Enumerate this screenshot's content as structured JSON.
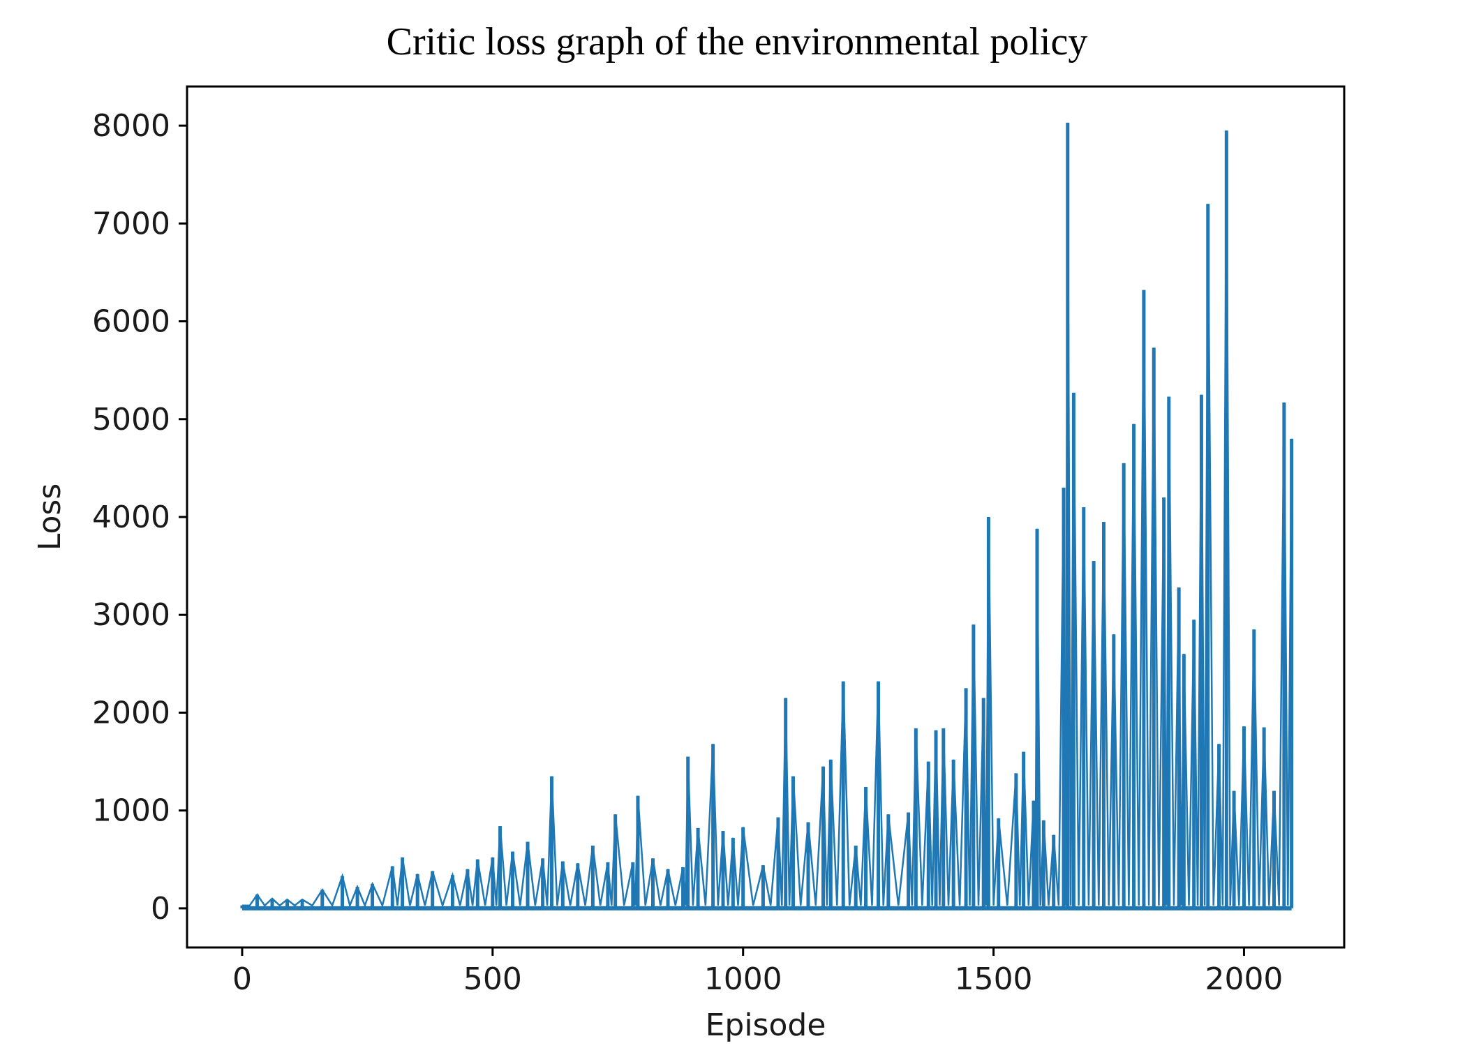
{
  "chart_data": {
    "type": "line",
    "title": "Critic loss graph of the environmental policy",
    "xlabel": "Episode",
    "ylabel": "Loss",
    "xlim": [
      -110,
      2200
    ],
    "ylim": [
      -400,
      8400
    ],
    "xticks": [
      0,
      500,
      1000,
      1500,
      2000
    ],
    "yticks": [
      0,
      1000,
      2000,
      3000,
      4000,
      5000,
      6000,
      7000,
      8000
    ],
    "grid": false,
    "legend": "none",
    "series": [
      {
        "color": "#1f77b4",
        "x": [
          0,
          30,
          60,
          90,
          120,
          160,
          200,
          230,
          260,
          300,
          320,
          350,
          380,
          420,
          450,
          470,
          500,
          515,
          540,
          570,
          600,
          618,
          640,
          670,
          700,
          730,
          745,
          780,
          790,
          820,
          850,
          880,
          890,
          910,
          940,
          960,
          980,
          1000,
          1040,
          1070,
          1085,
          1100,
          1130,
          1160,
          1175,
          1200,
          1225,
          1245,
          1270,
          1290,
          1330,
          1345,
          1370,
          1385,
          1400,
          1420,
          1445,
          1460,
          1480,
          1490,
          1510,
          1545,
          1560,
          1580,
          1587,
          1600,
          1620,
          1640,
          1648,
          1660,
          1680,
          1700,
          1720,
          1740,
          1760,
          1780,
          1800,
          1820,
          1840,
          1850,
          1870,
          1880,
          1900,
          1915,
          1928,
          1950,
          1965,
          1980,
          2000,
          2020,
          2040,
          2060,
          2080,
          2095
        ],
        "y": [
          30,
          140,
          100,
          90,
          90,
          190,
          330,
          220,
          250,
          430,
          520,
          350,
          380,
          340,
          400,
          500,
          520,
          840,
          580,
          680,
          510,
          1350,
          480,
          460,
          640,
          470,
          960,
          470,
          1150,
          510,
          400,
          420,
          1550,
          820,
          1680,
          790,
          720,
          830,
          440,
          930,
          2150,
          1350,
          880,
          1450,
          1520,
          2320,
          640,
          1240,
          2320,
          960,
          980,
          1840,
          1500,
          1820,
          1840,
          1520,
          2250,
          2900,
          2150,
          4000,
          920,
          1380,
          1600,
          1100,
          3880,
          900,
          750,
          4300,
          8030,
          5270,
          4100,
          3550,
          3950,
          2800,
          4550,
          4950,
          6320,
          5730,
          4200,
          5230,
          3280,
          2600,
          2950,
          5250,
          7200,
          1680,
          7950,
          1200,
          1860,
          2850,
          1850,
          1200,
          5170,
          4800
        ]
      }
    ]
  }
}
